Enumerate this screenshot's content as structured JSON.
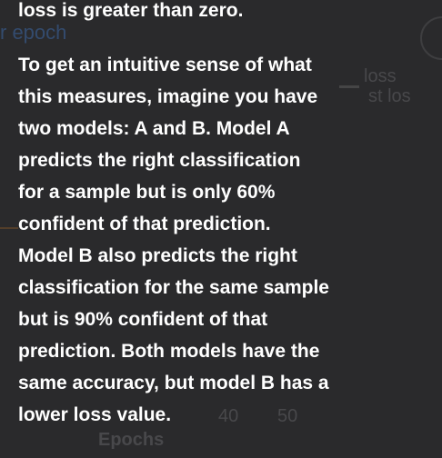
{
  "background": {
    "labels": [
      "r epoch",
      "loss",
      "st los",
      "40",
      "50",
      "Epochs"
    ]
  },
  "tooltip": {
    "paragraphs": [
      [
        "loss is greater than zero."
      ],
      [
        "To get an intuitive sense of what",
        "this measures, imagine you have",
        "two models: A and B. Model A",
        "predicts the right classification",
        "for a sample but is only 60%",
        "confident of that prediction.",
        "Model B also predicts the right",
        "classification for the same sample",
        "but is 90% confident of that",
        "prediction. Both models have the",
        "same accuracy, but model B has a",
        "lower loss value."
      ]
    ]
  }
}
